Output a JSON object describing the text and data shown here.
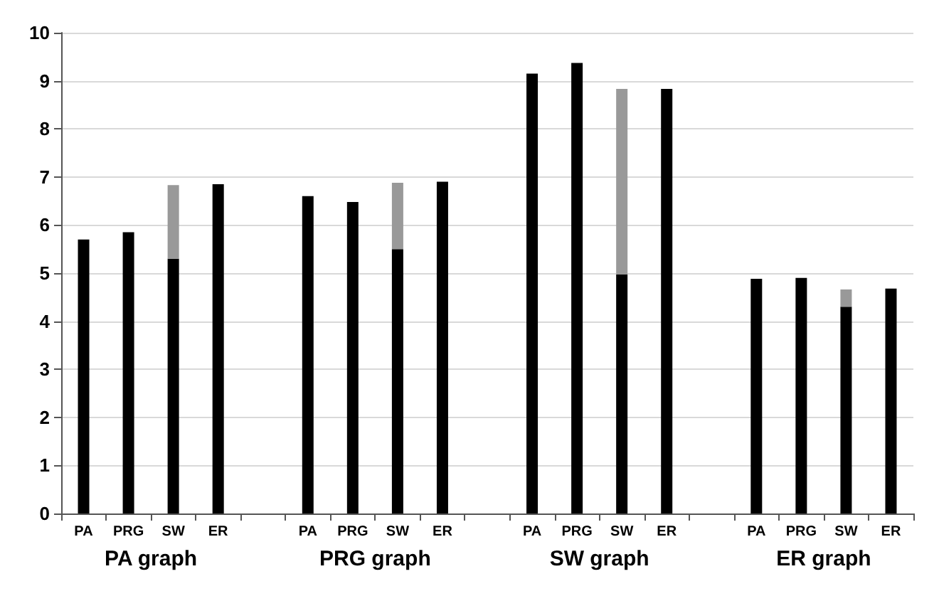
{
  "chart_data": {
    "type": "bar",
    "stacked": true,
    "categories": [
      "PA",
      "PRG",
      "SW",
      "ER",
      null,
      "PA",
      "PRG",
      "SW",
      "ER",
      null,
      "PA",
      "PRG",
      "SW",
      "ER",
      null,
      "PA",
      "PRG",
      "SW",
      "ER"
    ],
    "series": [
      {
        "color": "#000000",
        "values": [
          5.7,
          5.85,
          5.3,
          6.85,
          null,
          6.6,
          6.48,
          5.5,
          6.9,
          null,
          9.15,
          9.37,
          4.97,
          8.83,
          null,
          4.88,
          4.9,
          4.3,
          4.68
        ]
      },
      {
        "color": "#999999",
        "values": [
          null,
          null,
          1.53,
          null,
          null,
          null,
          null,
          1.38,
          null,
          null,
          null,
          null,
          3.86,
          null,
          null,
          null,
          null,
          0.36,
          null
        ]
      }
    ],
    "ylim": [
      0,
      10
    ],
    "yticks": [
      0,
      1,
      2,
      3,
      4,
      5,
      6,
      7,
      8,
      9,
      10
    ],
    "grid": "y",
    "annotations": [
      "PA graph",
      "PRG graph",
      "SW graph",
      "ER graph"
    ]
  }
}
